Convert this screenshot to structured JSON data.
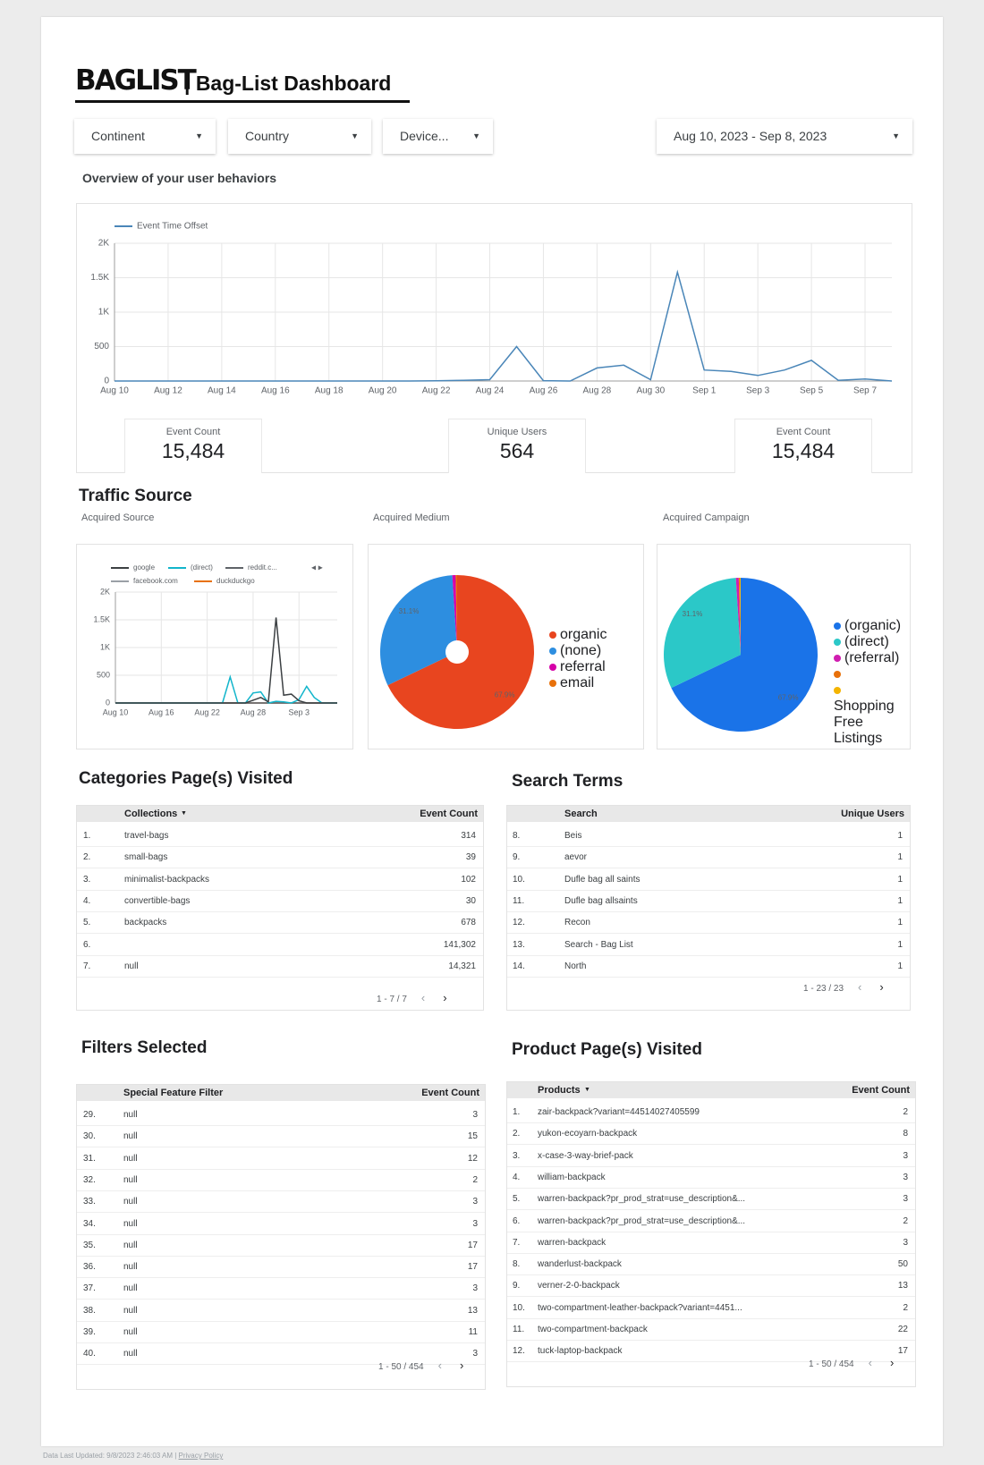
{
  "header": {
    "logo": "BAGLIST",
    "title": "| Bag-List Dashboard"
  },
  "filters": [
    "Continent",
    "Country",
    "Device...",
    "Aug 10, 2023 - Sep 8, 2023"
  ],
  "overview": {
    "heading": "Overview of your user behaviors",
    "chart": {
      "type": "line",
      "categories": [
        "Aug 10",
        null,
        "Aug 12",
        null,
        "Aug 14",
        null,
        "Aug 16",
        null,
        "Aug 18",
        null,
        "Aug 20",
        null,
        "Aug 22",
        null,
        "Aug 24",
        null,
        "Aug 26",
        null,
        "Aug 28",
        null,
        "Aug 30",
        null,
        "Sep 1",
        null,
        "Sep 3",
        null,
        "Sep 5",
        null,
        "Sep 7",
        null
      ],
      "series": [
        {
          "name": "Event Time Offset",
          "color": "#4a86b8",
          "values": [
            0,
            0,
            0,
            0,
            0,
            0,
            0,
            0,
            0,
            0,
            0,
            0,
            3,
            10,
            20,
            500,
            5,
            0,
            190,
            230,
            20,
            1580,
            160,
            140,
            80,
            160,
            300,
            10,
            30,
            0
          ]
        }
      ],
      "ylim": [
        0,
        2000
      ],
      "yticks": [
        0,
        500,
        {
          "value": 1000,
          "label": "1K"
        },
        {
          "value": 1500,
          "label": "1.5K"
        },
        {
          "value": 2000,
          "label": "2K"
        }
      ],
      "grid": true
    },
    "scorecards": [
      {
        "label": "Event Count",
        "value": "15,484"
      },
      {
        "label": "Unique Users",
        "value": "564"
      },
      {
        "label": "Event Count",
        "value": "15,484"
      }
    ]
  },
  "traffic_source": {
    "heading": "Traffic Source",
    "charts": [
      {
        "type": "line",
        "title": "Acquired Source",
        "categories": [
          "Aug 10",
          null,
          null,
          null,
          null,
          null,
          "Aug 16",
          null,
          null,
          null,
          null,
          null,
          "Aug 22",
          null,
          null,
          null,
          null,
          null,
          "Aug 28",
          null,
          null,
          null,
          null,
          null,
          "Sep 3",
          null,
          null,
          null,
          null,
          null
        ],
        "series": [
          {
            "name": "google",
            "color": "#3c4043",
            "values": [
              0,
              0,
              0,
              0,
              0,
              0,
              0,
              0,
              0,
              0,
              0,
              0,
              0,
              0,
              0,
              0,
              0,
              0,
              50,
              100,
              20,
              1540,
              140,
              160,
              40,
              0,
              0,
              0,
              0,
              0
            ]
          },
          {
            "name": "(direct)",
            "color": "#12b5cb",
            "values": [
              0,
              0,
              0,
              0,
              0,
              0,
              0,
              0,
              0,
              0,
              0,
              0,
              0,
              0,
              0,
              470,
              5,
              0,
              180,
              200,
              0,
              30,
              20,
              0,
              60,
              300,
              100,
              0,
              0,
              0
            ]
          },
          {
            "name": "reddit.c...",
            "color": "#5f6368",
            "values": [
              0,
              0,
              0,
              0,
              0,
              0,
              0,
              0,
              0,
              0,
              0,
              0,
              0,
              0,
              0,
              0,
              0,
              0,
              0,
              0,
              0,
              0,
              0,
              0,
              0,
              0,
              0,
              0,
              0,
              0
            ]
          },
          {
            "name": "facebook.com",
            "color": "#9aa0a6",
            "values": [
              0,
              0,
              0,
              0,
              0,
              0,
              0,
              0,
              0,
              0,
              0,
              0,
              0,
              0,
              0,
              0,
              0,
              0,
              0,
              0,
              0,
              0,
              0,
              0,
              0,
              0,
              0,
              0,
              0,
              0
            ]
          },
          {
            "name": "duckduckgo",
            "color": "#e8710a",
            "values": [
              0,
              0,
              0,
              0,
              0,
              0,
              0,
              0,
              0,
              0,
              0,
              0,
              0,
              0,
              0,
              0,
              0,
              0,
              0,
              0,
              0,
              0,
              0,
              0,
              0,
              0,
              0,
              0,
              0,
              0
            ]
          }
        ],
        "ylim": [
          0,
          2000
        ],
        "yticks": [
          0,
          500,
          {
            "value": 1000,
            "label": "1K"
          },
          {
            "value": 1500,
            "label": "1.5K"
          },
          {
            "value": 2000,
            "label": "2K"
          }
        ],
        "grid": true
      },
      {
        "type": "pie",
        "title": "Acquired Medium",
        "donut": true,
        "names": [
          "organic",
          "(none)",
          "referral",
          "email"
        ],
        "colors": [
          "#e8451f",
          "#2d8ee0",
          "#d600a8",
          "#e8710a"
        ],
        "values": [
          67.9,
          31.1,
          0.7,
          0.3
        ],
        "value_labels": [
          "67.9%",
          "31.1%",
          null,
          null
        ]
      },
      {
        "type": "pie",
        "title": "Acquired Campaign",
        "donut": false,
        "names": [
          "(organic)",
          "(direct)",
          "(referral)",
          null,
          "Shopping Free Listings"
        ],
        "colors": [
          "#1a73e8",
          "#2bc8c8",
          "#d01eb0",
          "#e8710a",
          "#f4b400"
        ],
        "values": [
          67.9,
          31.1,
          0.6,
          0.2,
          0.2
        ],
        "value_labels": [
          "67.9%",
          "31.1%",
          null,
          null,
          null
        ]
      }
    ]
  },
  "tables": [
    {
      "heading": "Categories Page(s) Visited",
      "columns": [
        "Collections",
        "Event Count"
      ],
      "rows": [
        [
          "1.",
          "travel-bags",
          "314"
        ],
        [
          "2.",
          "small-bags",
          "39"
        ],
        [
          "3.",
          "minimalist-backpacks",
          "102"
        ],
        [
          "4.",
          "convertible-bags",
          "30"
        ],
        [
          "5.",
          "backpacks",
          "678"
        ],
        [
          "6.",
          null,
          "141,302"
        ],
        [
          "7.",
          "null",
          "14,321"
        ]
      ],
      "pagination": "1 - 7 / 7"
    },
    {
      "heading": "Search Terms",
      "columns": [
        "Search",
        "Unique Users"
      ],
      "rows": [
        [
          "8.",
          "Beis",
          "1"
        ],
        [
          "9.",
          "aevor",
          "1"
        ],
        [
          "10.",
          "Dufle bag all saints",
          "1"
        ],
        [
          "11.",
          "Dufle bag allsaints",
          "1"
        ],
        [
          "12.",
          "Recon",
          "1"
        ],
        [
          "13.",
          "Search - Bag List",
          "1"
        ],
        [
          "14.",
          "North",
          "1"
        ]
      ],
      "pagination": "1 - 23 / 23"
    },
    {
      "heading": "Filters Selected",
      "columns": [
        "Special Feature Filter",
        "Event Count"
      ],
      "rows": [
        [
          "29.",
          "null",
          "3"
        ],
        [
          "30.",
          "null",
          "15"
        ],
        [
          "31.",
          "null",
          "12"
        ],
        [
          "32.",
          "null",
          "2"
        ],
        [
          "33.",
          "null",
          "3"
        ],
        [
          "34.",
          "null",
          "3"
        ],
        [
          "35.",
          "null",
          "17"
        ],
        [
          "36.",
          "null",
          "17"
        ],
        [
          "37.",
          "null",
          "3"
        ],
        [
          "38.",
          "null",
          "13"
        ],
        [
          "39.",
          "null",
          "11"
        ],
        [
          "40.",
          "null",
          "3"
        ]
      ],
      "pagination": "1 - 50 / 454"
    },
    {
      "heading": "Product Page(s) Visited",
      "columns": [
        "Products",
        "Event Count"
      ],
      "rows": [
        [
          "1.",
          "zair-backpack?variant=44514027405599",
          "2"
        ],
        [
          "2.",
          "yukon-ecoyarn-backpack",
          "8"
        ],
        [
          "3.",
          "x-case-3-way-brief-pack",
          "3"
        ],
        [
          "4.",
          "william-backpack",
          "3"
        ],
        [
          "5.",
          "warren-backpack?pr_prod_strat=use_description&...",
          "3"
        ],
        [
          "6.",
          "warren-backpack?pr_prod_strat=use_description&...",
          "2"
        ],
        [
          "7.",
          "warren-backpack",
          "3"
        ],
        [
          "8.",
          "wanderlust-backpack",
          "50"
        ],
        [
          "9.",
          "verner-2-0-backpack",
          "13"
        ],
        [
          "10.",
          "two-compartment-leather-backpack?variant=4451...",
          "2"
        ],
        [
          "11.",
          "two-compartment-backpack",
          "22"
        ],
        [
          "12.",
          "tuck-laptop-backpack",
          "17"
        ]
      ],
      "pagination": "1 - 50 / 454"
    }
  ],
  "footer": {
    "updated": "Data Last Updated: 9/8/2023 2:46:03 AM",
    "link": "Privacy Policy"
  }
}
